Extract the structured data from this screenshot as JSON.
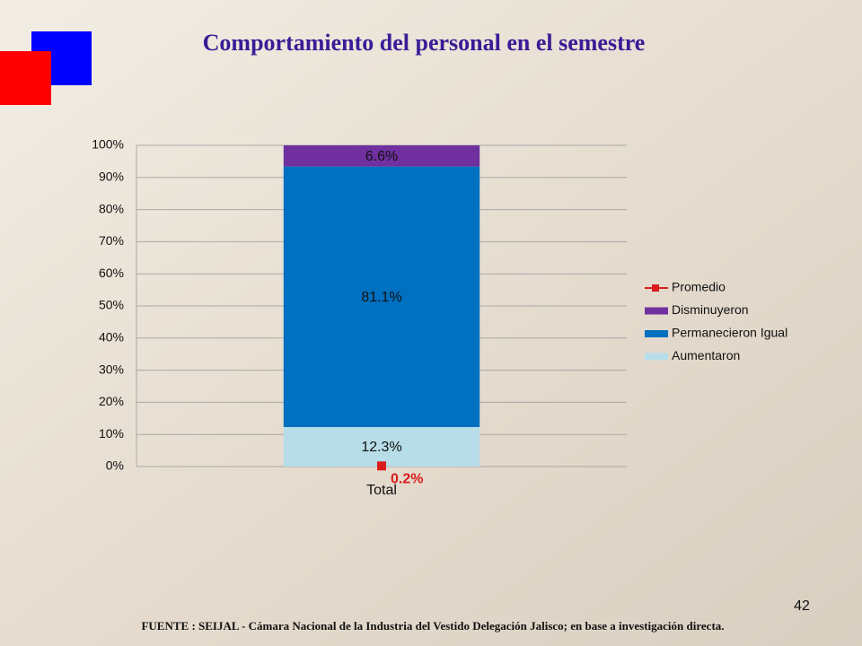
{
  "chart_data": {
    "type": "bar",
    "stacked": true,
    "title": "Comportamiento del personal en el semestre",
    "categories": [
      "Total"
    ],
    "series": [
      {
        "name": "Aumentaron",
        "color": "#b7dde8",
        "values": [
          12.3
        ],
        "value_labels": [
          "12.3%"
        ]
      },
      {
        "name": "Permanecieron Igual",
        "color": "#0070c0",
        "values": [
          81.1
        ],
        "value_labels": [
          "81.1%"
        ]
      },
      {
        "name": "Disminuyeron",
        "color": "#7030a0",
        "values": [
          6.6
        ],
        "value_labels": [
          "6.6%"
        ]
      },
      {
        "name": "Promedio",
        "type": "line",
        "color": "#d91c1c",
        "values": [
          0.2
        ],
        "value_labels": [
          "0.2%"
        ]
      }
    ],
    "ylim": [
      0,
      100
    ],
    "yticks": [
      {
        "value": 0,
        "label": "0%"
      },
      {
        "value": 10,
        "label": "10%"
      },
      {
        "value": 20,
        "label": "20%"
      },
      {
        "value": 30,
        "label": "30%"
      },
      {
        "value": 40,
        "label": "40%"
      },
      {
        "value": 50,
        "label": "50%"
      },
      {
        "value": 60,
        "label": "60%"
      },
      {
        "value": 70,
        "label": "70%"
      },
      {
        "value": 80,
        "label": "80%"
      },
      {
        "value": 90,
        "label": "90%"
      },
      {
        "value": 100,
        "label": "100%"
      }
    ],
    "grid": true,
    "legend": "right"
  },
  "slide": {
    "page_number": "42",
    "source": "FUENTE :  SEIJAL - Cámara Nacional de la Industria del Vestido Delegación Jalisco;  en base a investigación directa."
  }
}
